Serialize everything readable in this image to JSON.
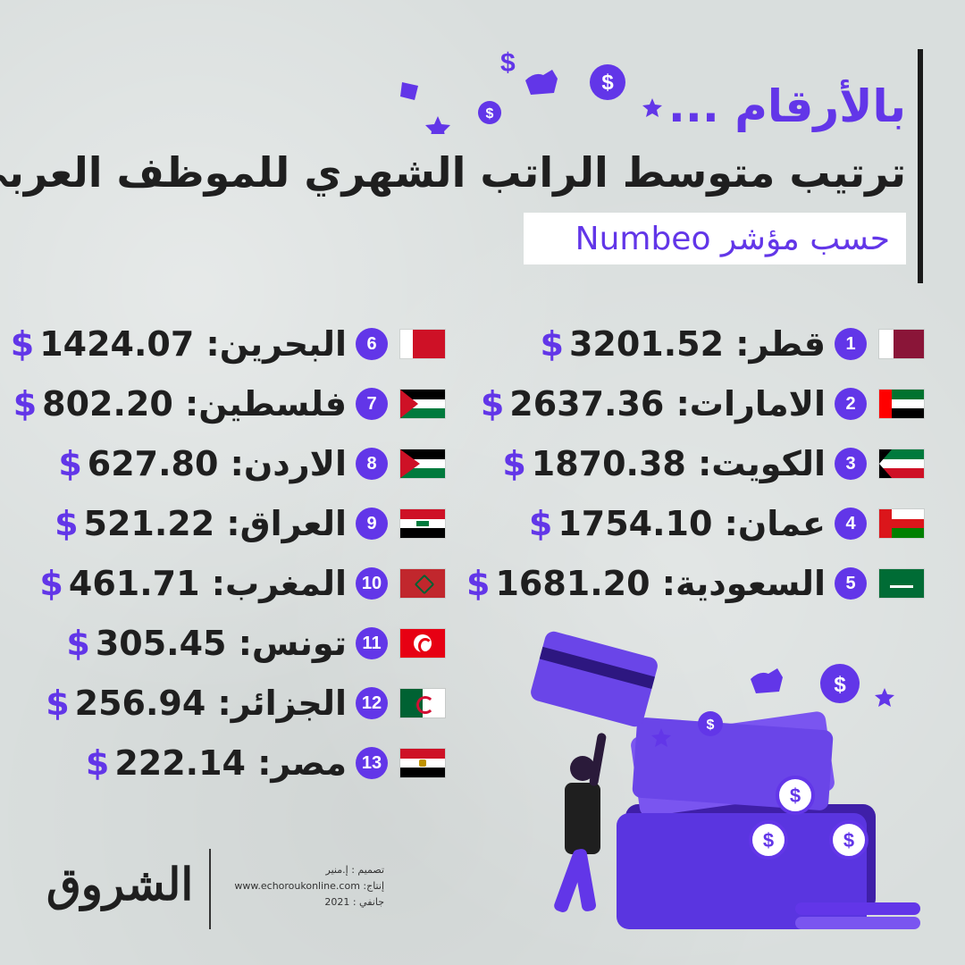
{
  "header": {
    "kicker": "بالأرقام ...",
    "title": "ترتيب متوسط الراتب الشهري للموظف العربي",
    "source": "حسب مؤشر Numbeo"
  },
  "colors": {
    "accent": "#6236e8",
    "text": "#1f1f1f",
    "background": "#d9dedd"
  },
  "rankings_left": [
    {
      "rank": "6",
      "country": "البحرين:",
      "value": "1424.07",
      "currency": "$",
      "flag": "bahrain-flag"
    },
    {
      "rank": "7",
      "country": "فلسطين:",
      "value": "802.20",
      "currency": "$",
      "flag": "palestine-flag"
    },
    {
      "rank": "8",
      "country": "الاردن:",
      "value": "627.80",
      "currency": "$",
      "flag": "jordan-flag"
    },
    {
      "rank": "9",
      "country": "العراق:",
      "value": "521.22",
      "currency": "$",
      "flag": "iraq-flag"
    },
    {
      "rank": "10",
      "country": "المغرب:",
      "value": "461.71",
      "currency": "$",
      "flag": "morocco-flag"
    },
    {
      "rank": "11",
      "country": "تونس:",
      "value": "305.45",
      "currency": "$",
      "flag": "tunisia-flag"
    },
    {
      "rank": "12",
      "country": "الجزائر:",
      "value": "256.94",
      "currency": "$",
      "flag": "algeria-flag"
    },
    {
      "rank": "13",
      "country": "مصر:",
      "value": "222.14",
      "currency": "$",
      "flag": "egypt-flag"
    }
  ],
  "rankings_right": [
    {
      "rank": "1",
      "country": "قطر:",
      "value": "3201.52",
      "currency": "$",
      "flag": "qatar-flag"
    },
    {
      "rank": "2",
      "country": "الامارات:",
      "value": "2637.36",
      "currency": "$",
      "flag": "uae-flag"
    },
    {
      "rank": "3",
      "country": "الكويت:",
      "value": "1870.38",
      "currency": "$",
      "flag": "kuwait-flag"
    },
    {
      "rank": "4",
      "country": "عمان:",
      "value": "1754.10",
      "currency": "$",
      "flag": "oman-flag"
    },
    {
      "rank": "5",
      "country": "السعودية:",
      "value": "1681.20",
      "currency": "$",
      "flag": "saudi-flag"
    }
  ],
  "footer": {
    "logo": "الشروق",
    "design_credit": "تصميم : إ.منير",
    "production_credit": "إنتاج: www.echoroukonline.com",
    "date": "جانفي : 2021"
  }
}
